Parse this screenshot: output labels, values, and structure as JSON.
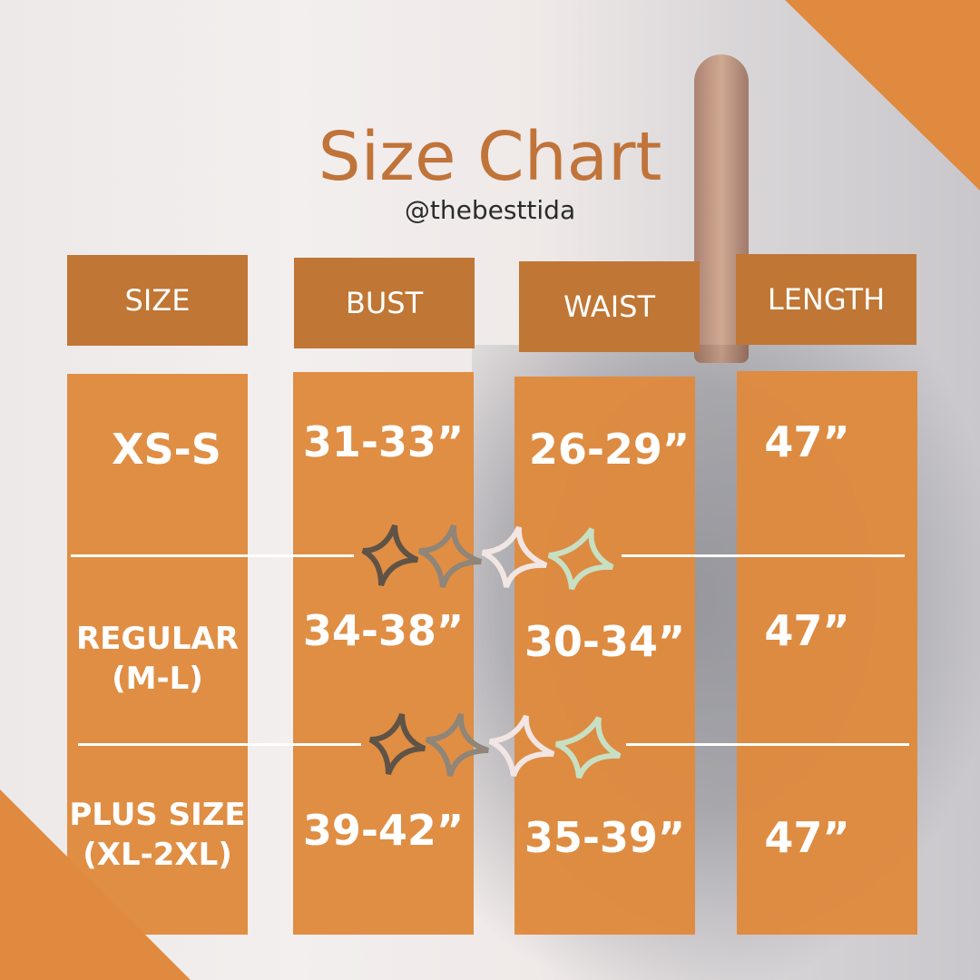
{
  "title": "Size Chart",
  "handle": "@thebesttida",
  "headers": [
    "SIZE",
    "BUST",
    "WAIST",
    "LENGTH"
  ],
  "rows": [
    {
      "size": "XS-S",
      "size2": "",
      "bust": "31-33”",
      "waist": "26-29”",
      "length": "47”"
    },
    {
      "size": "REGULAR",
      "size2": "(M-L)",
      "bust": "34-38”",
      "waist": "30-34”",
      "length": "47”"
    },
    {
      "size": "PLUS SIZE",
      "size2": "(XL-2XL)",
      "bust": "39-42”",
      "waist": "35-39”",
      "length": "47”"
    }
  ],
  "colors": {
    "accent": "#df8a3e",
    "header": "#c07634",
    "title": "#c0743a",
    "sparkles": [
      "#5e5346",
      "#8f8578",
      "#f1e6e3",
      "#c7e0c4"
    ]
  }
}
